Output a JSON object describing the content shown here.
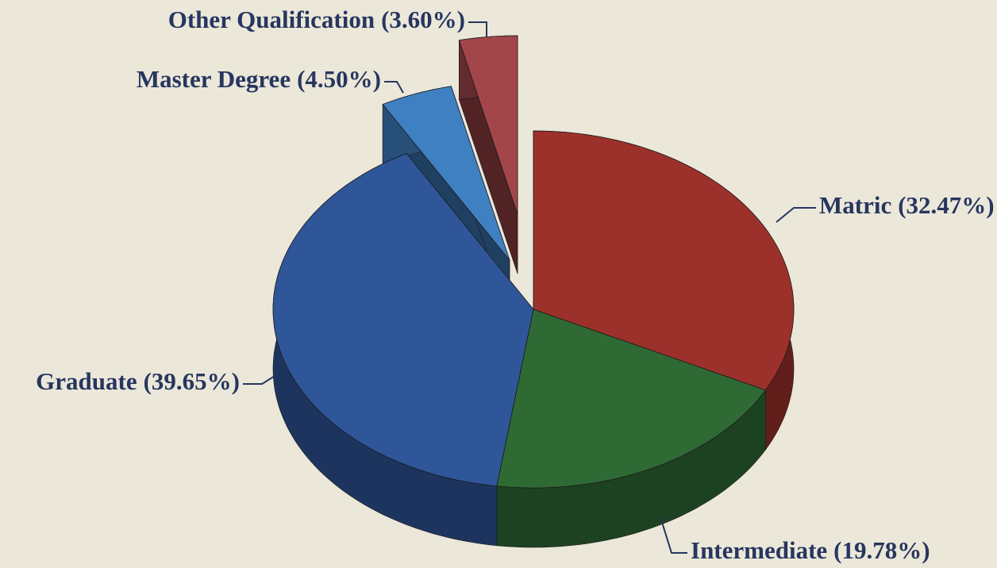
{
  "chart_data": {
    "type": "pie3d",
    "categories": [
      "Matric",
      "Intermediate",
      "Graduate",
      "Master Degree",
      "Other Qualification"
    ],
    "values": [
      32.47,
      19.78,
      39.65,
      4.5,
      3.6
    ],
    "value_labels": [
      "(32.47%)",
      "(19.78%)",
      "(39.65%)",
      "(4.50%)",
      "(3.60%)"
    ],
    "colors": [
      "#9c312b",
      "#2f6a35",
      "#2f5698",
      "#3f80c2",
      "#a2464a"
    ]
  }
}
